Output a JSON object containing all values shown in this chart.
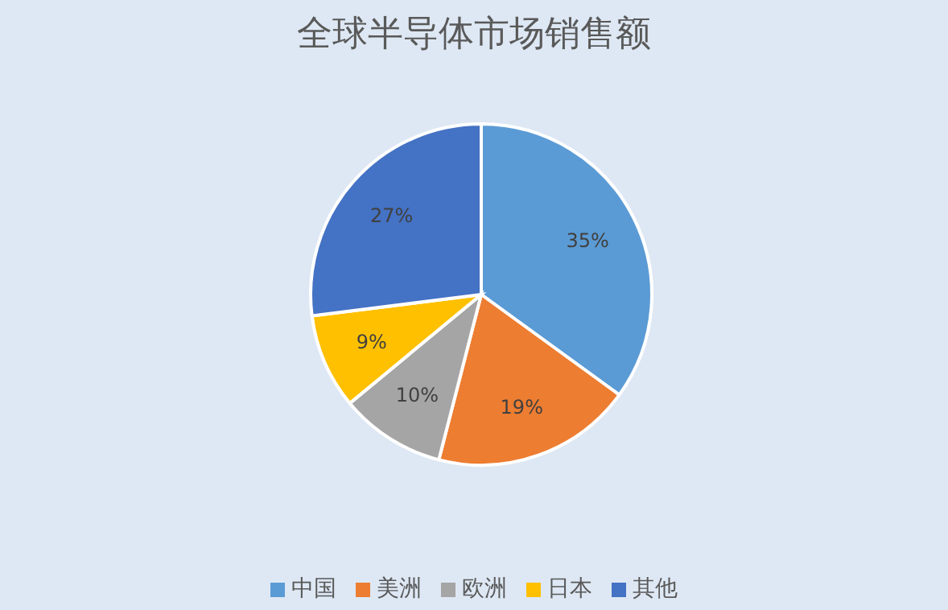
{
  "chart_data": {
    "type": "pie",
    "title": "全球半导体市场销售额",
    "categories": [
      "中国",
      "美洲",
      "欧洲",
      "日本",
      "其他"
    ],
    "values": [
      35,
      19,
      10,
      9,
      27
    ],
    "value_labels": [
      "35%",
      "19%",
      "10%",
      "9%",
      "27%"
    ],
    "colors": [
      "#5b9bd5",
      "#ed7d31",
      "#a5a5a5",
      "#ffc000",
      "#4472c4"
    ],
    "legend": "bottom"
  }
}
